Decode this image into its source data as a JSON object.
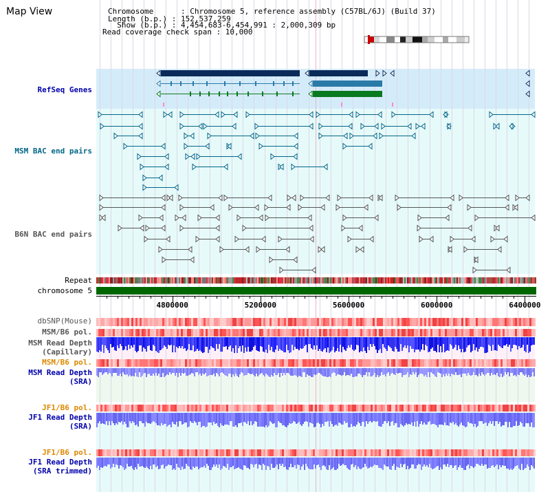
{
  "title": "Map View",
  "header": {
    "chromosome_line": "Chromosome      : Chromosome 5, reference assembly (C57BL/6J) (Build 37)",
    "length_line": "Length (b.p.) : 152,537,259",
    "show_line": "  Show (b.p.) : 4,454,683-6,454,991 : 2,000,309 bp",
    "coverage_line": "Read coverage check span : 10,000"
  },
  "tracks": {
    "refseq": {
      "label": "RefSeq Genes",
      "color": "#0000aa"
    },
    "msm_bac": {
      "label": "MSM BAC end pairs",
      "color": "#006688"
    },
    "b6n_bac": {
      "label": "B6N BAC end pairs",
      "color": "#555555"
    },
    "repeat": {
      "label": "Repeat",
      "color": "#000000"
    },
    "chromosome": {
      "label": "chromosome 5",
      "color": "#000000"
    },
    "dbsnp": {
      "label": "dbSNP(Mouse)",
      "color": "#555555"
    },
    "msm_b6_pol_1": {
      "label": "MSM/B6 pol.",
      "color": "#555555"
    },
    "msm_read_depth_cap": {
      "label": "MSM Read Depth\n(Capillary)",
      "color": "#555555"
    },
    "msm_b6_pol_2": {
      "label": "MSM/B6 pol.",
      "color": "#dd8800"
    },
    "msm_read_depth_sra": {
      "label": "MSM Read Depth\n(SRA)",
      "color": "#0000aa"
    },
    "jf1_b6_pol_1": {
      "label": "JF1/B6 pol.",
      "color": "#dd8800"
    },
    "jf1_read_depth_sra": {
      "label": "JF1 Read Depth\n(SRA)",
      "color": "#0000aa"
    },
    "jf1_b6_pol_2": {
      "label": "JF1/B6 pol.",
      "color": "#dd8800"
    },
    "jf1_read_depth_trim": {
      "label": "JF1 Read Depth\n(SRA trimmed)",
      "color": "#0000aa"
    }
  },
  "axis": {
    "ticks": [
      {
        "value": 4800000,
        "label": "4800000"
      },
      {
        "value": 5200000,
        "label": "5200000"
      },
      {
        "value": 5600000,
        "label": "5600000"
      },
      {
        "value": 6000000,
        "label": "6000000"
      },
      {
        "value": 6400000,
        "label": "6400000"
      }
    ],
    "range": [
      4454683,
      6454991
    ]
  },
  "colors": {
    "refseq_bg": "#d4ecfa",
    "gene_dark": "#0a2a5a",
    "gene_mid": "#2a7aa8",
    "gene_green": "#0a7a20",
    "bac_bg": "#e6fafa",
    "msm_bac": "#006688",
    "b6n_bac": "#555555",
    "chromosome_bar": "#006600",
    "snp_red": "#ee3333",
    "snp_pink": "#ffaaaa",
    "depth_blue": "#2222ff",
    "depth_light": "#8888ff",
    "panel_pink": "#fff0f8",
    "panel_green": "#eef8ee",
    "panel_cyan": "#e6fafa"
  }
}
